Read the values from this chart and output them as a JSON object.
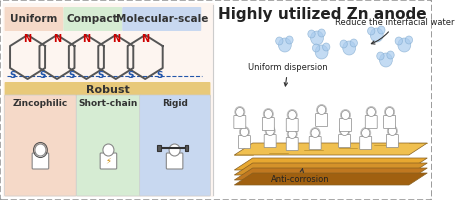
{
  "title_right": "Highly utilized Zn anode",
  "labels_top": [
    "Uniform",
    "Compact",
    "Molecular-scale"
  ],
  "labels_top_colors": [
    "#f5d9c8",
    "#d6ecd3",
    "#c8d8f0"
  ],
  "labels_bottom": [
    "Zincophilic",
    "Short-chain",
    "Rigid"
  ],
  "labels_bottom_colors": [
    "#f5d9c8",
    "#d6ecd3",
    "#c8d8f0"
  ],
  "robust_label": "Robust",
  "robust_bg": "#e8c97a",
  "right_labels": [
    "Uniform dispersion",
    "Reduce the interfacial water",
    "Anti-corrosion"
  ],
  "border_color": "#999999",
  "molecule_color": "#555555",
  "N_color": "#cc0000",
  "S_color": "#2255aa",
  "bg_outer": "#ffffff",
  "bg_left": "#fdf5f0",
  "title_fontsize": 11,
  "label_fontsize": 7.5
}
